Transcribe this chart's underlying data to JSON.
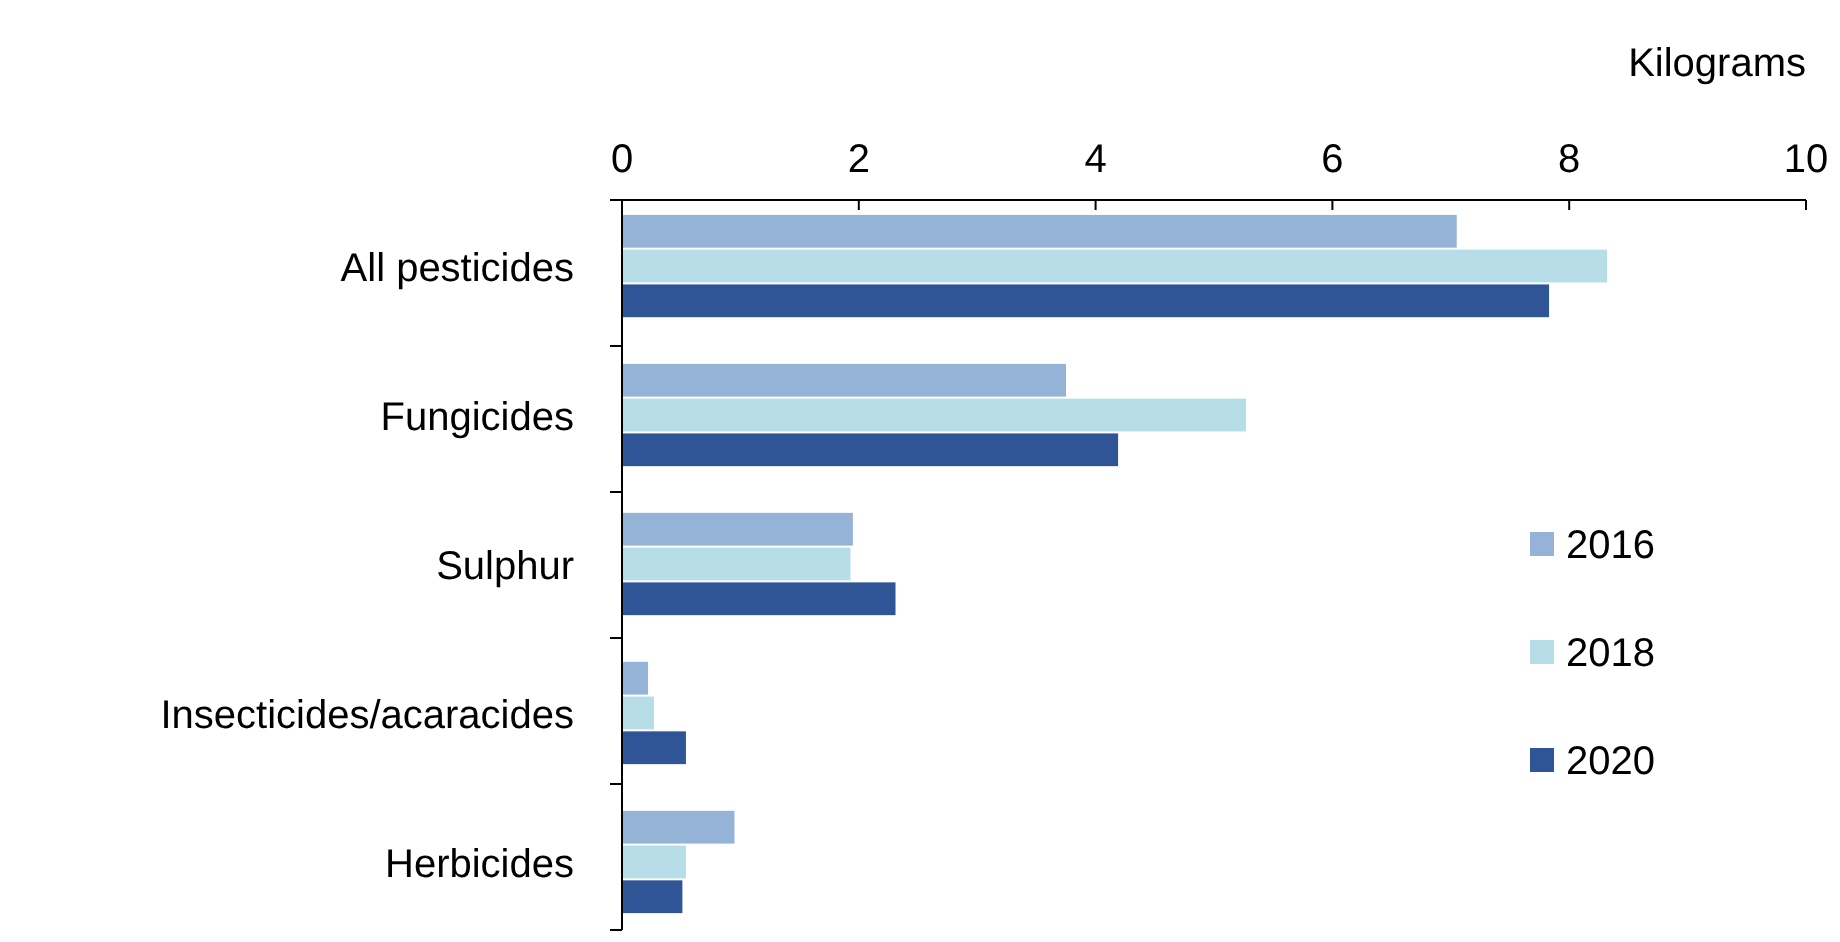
{
  "chart_data": {
    "type": "bar",
    "orientation": "horizontal",
    "xlabel": "Kilograms",
    "categories": [
      "All pesticides",
      "Fungicides",
      "Sulphur",
      "Insecticides/acaracides",
      "Herbicides"
    ],
    "series": [
      {
        "name": "2016",
        "color": "#95b3d7",
        "values": [
          7.05,
          3.75,
          1.95,
          0.22,
          0.95
        ]
      },
      {
        "name": "2018",
        "color": "#b7dde8",
        "values": [
          8.32,
          5.27,
          1.93,
          0.27,
          0.54
        ]
      },
      {
        "name": "2020",
        "color": "#2f5597",
        "values": [
          7.83,
          4.19,
          2.31,
          0.54,
          0.51
        ]
      }
    ],
    "xlim": [
      0,
      10
    ],
    "xticks": [
      0,
      2,
      4,
      6,
      8,
      10
    ],
    "grid": false,
    "legend": "right"
  }
}
